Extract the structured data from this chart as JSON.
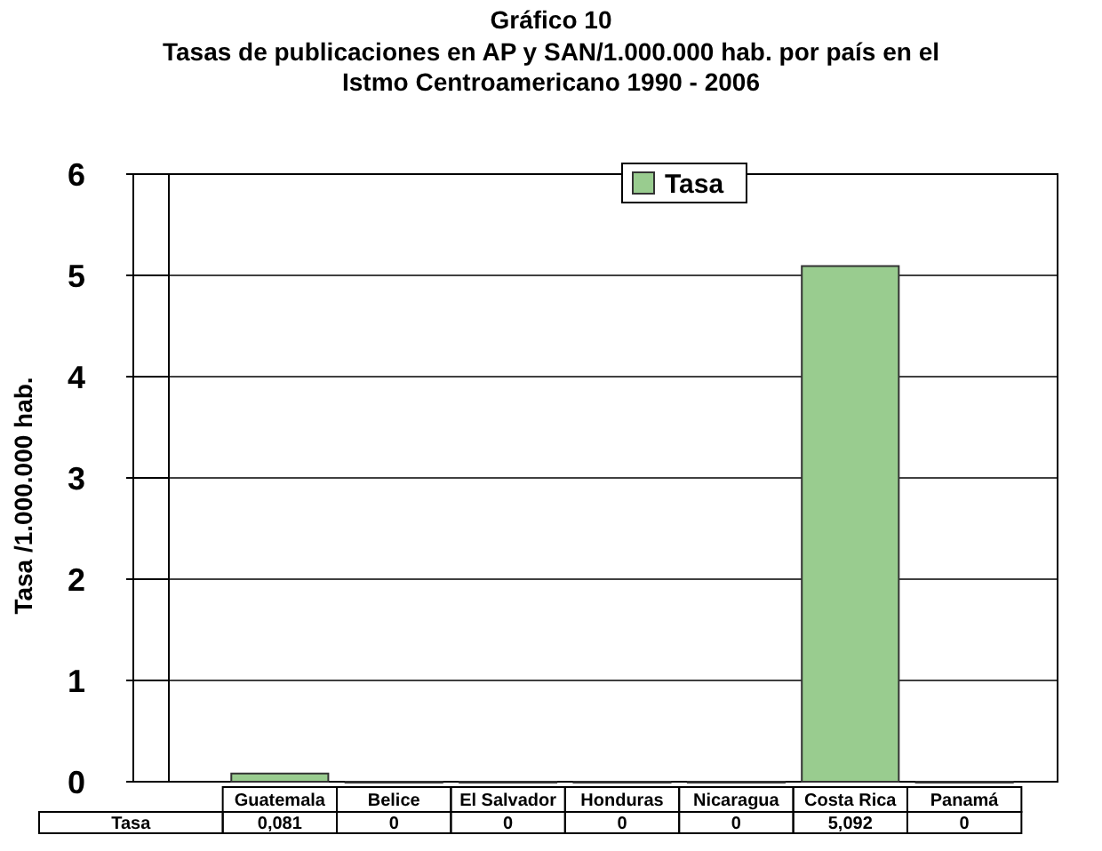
{
  "chart_data": {
    "type": "bar",
    "title": "Gráfico 10",
    "subtitle": "Tasas de publicaciones en AP y SAN/1.000.000 hab. por país en el Istmo Centroamericano 1990 - 2006",
    "ylabel": "Tasa /1.000.000 hab.",
    "categories": [
      "Guatemala",
      "Belice",
      "El Salvador",
      "Honduras",
      "Nicaragua",
      "Costa Rica",
      "Panamá"
    ],
    "series": [
      {
        "name": "Tasa",
        "color": "#99cc8f",
        "values": [
          0.081,
          0,
          0,
          0,
          0,
          5.092,
          0
        ],
        "value_labels": [
          "0,081",
          "0",
          "0",
          "0",
          "0",
          "5,092",
          "0"
        ]
      }
    ],
    "ylim": [
      0,
      6
    ],
    "yticks": [
      0,
      1,
      2,
      3,
      4,
      5,
      6
    ],
    "grid": "y",
    "legend": "top right"
  }
}
